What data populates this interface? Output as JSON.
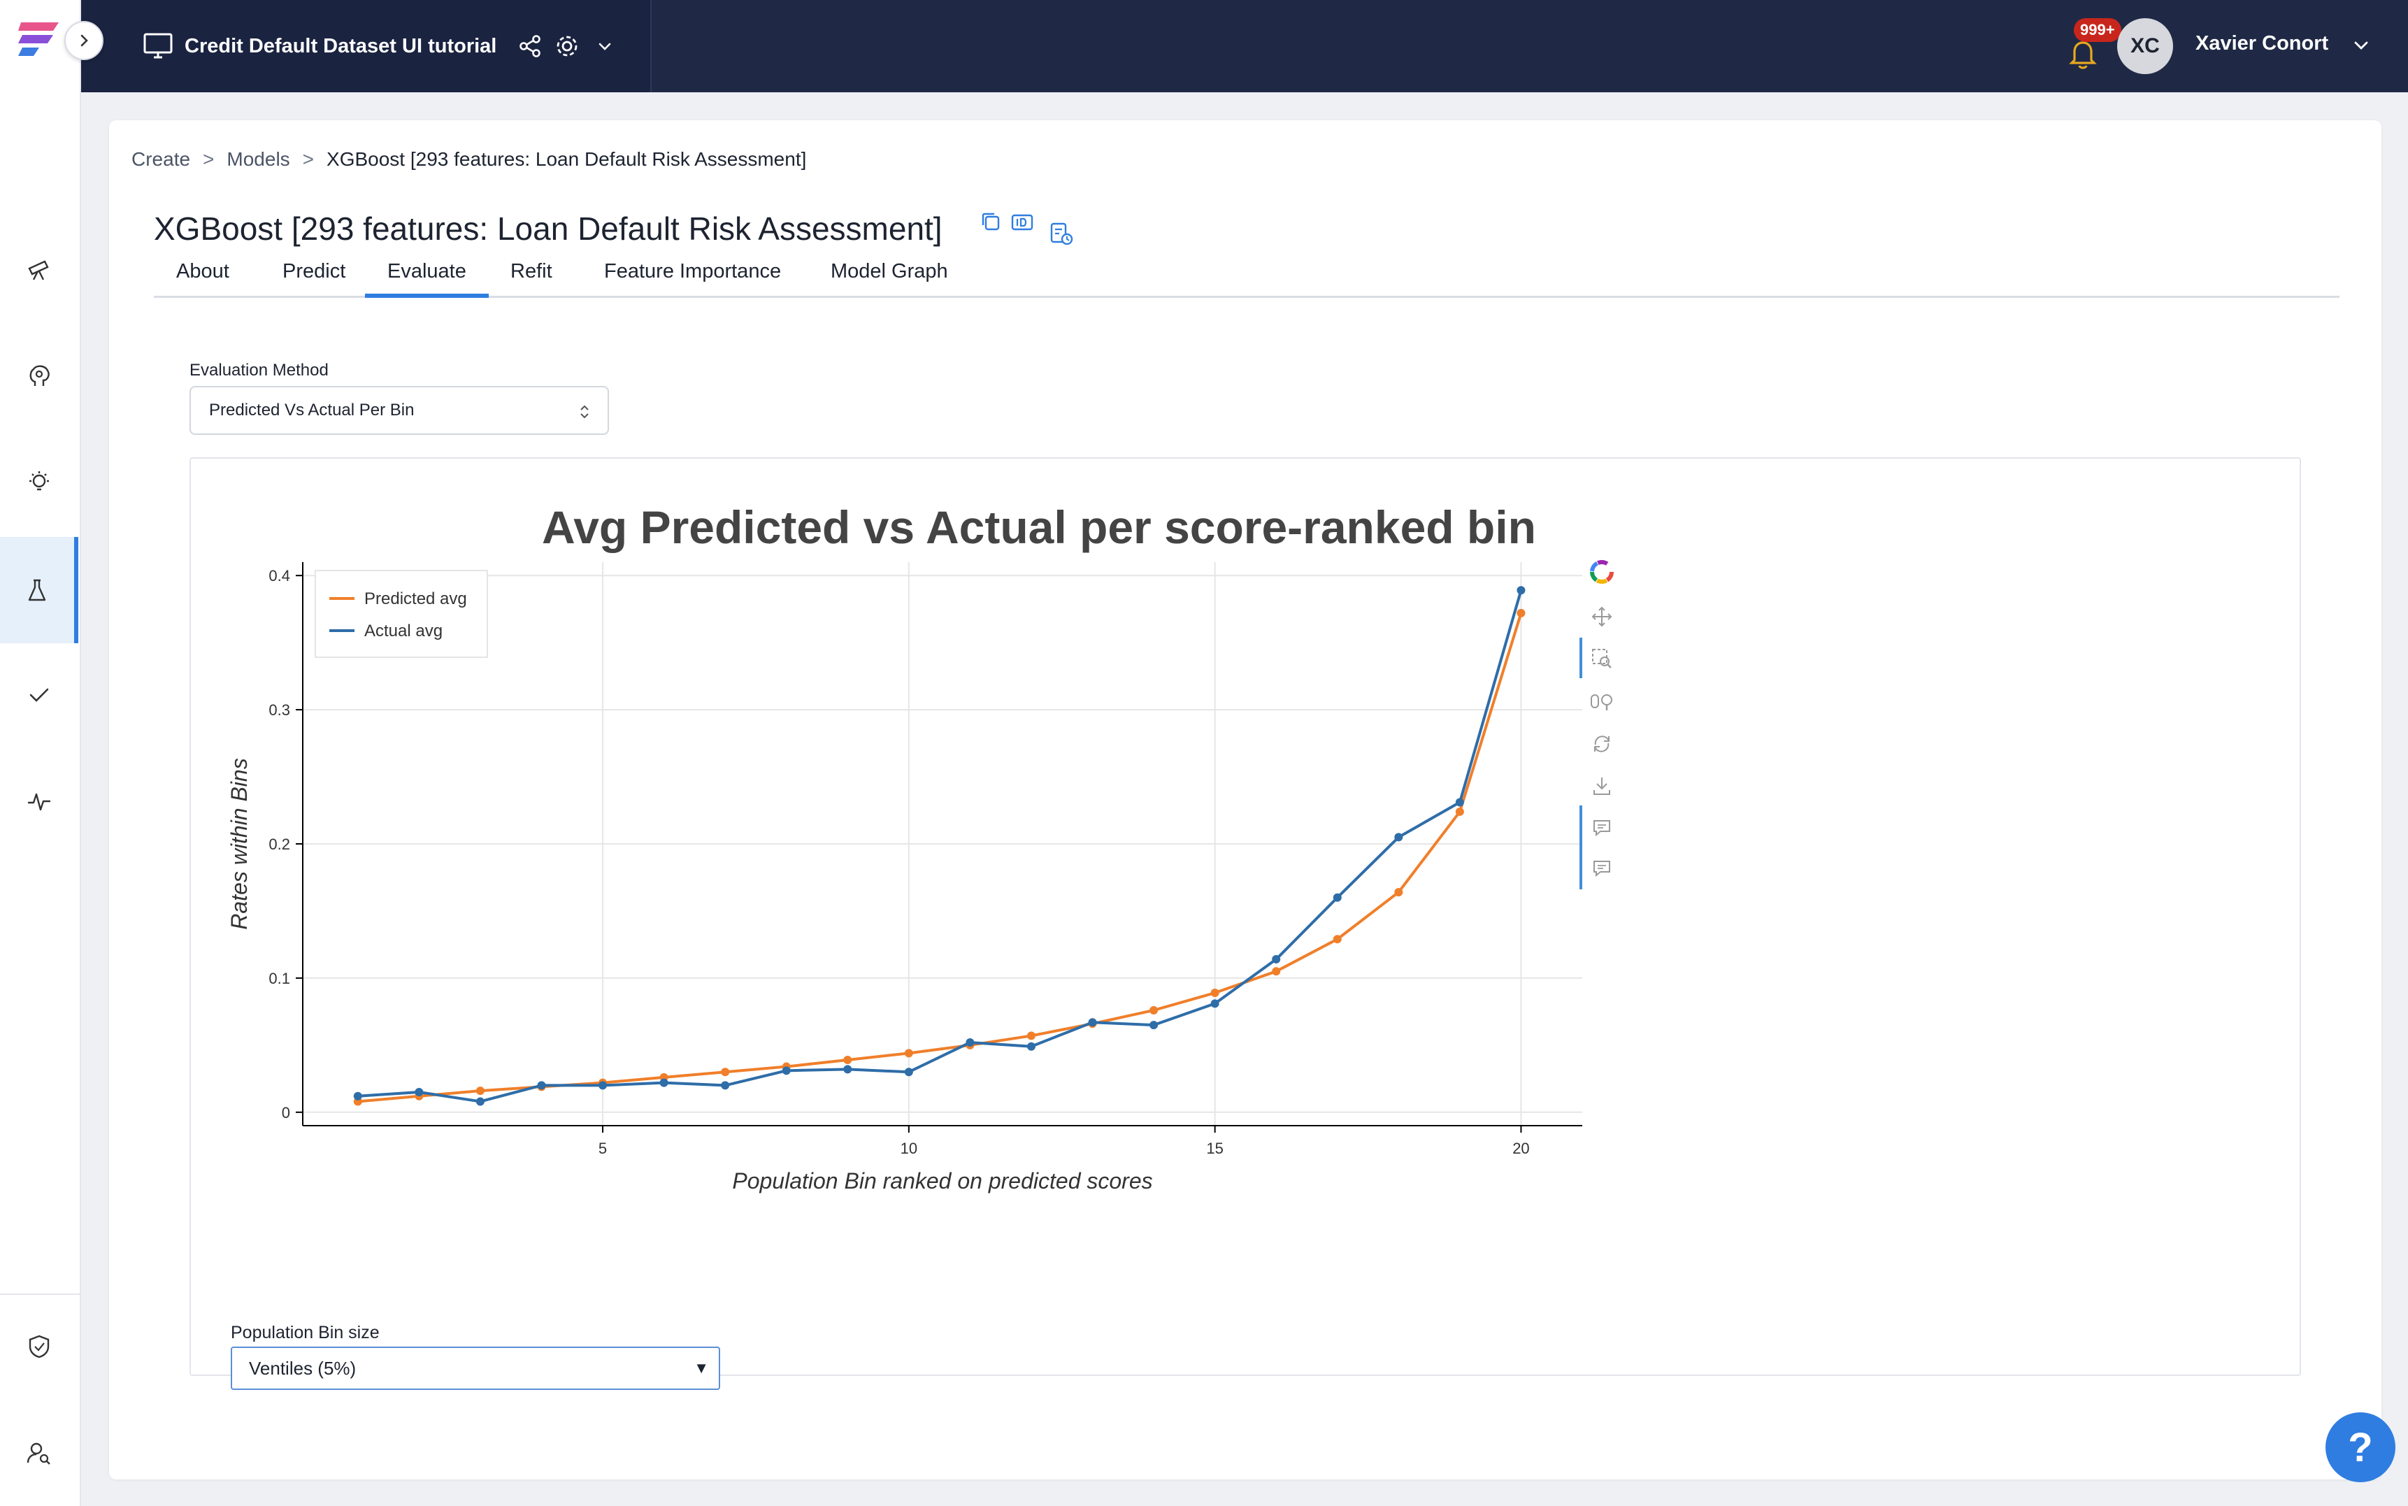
{
  "topbar": {
    "project_title": "Credit Default Dataset UI tutorial",
    "notification_count": "999+",
    "avatar_initials": "XC",
    "user_name": "Xavier Conort"
  },
  "breadcrumb": [
    "Create",
    "Models",
    "XGBoost [293 features: Loan Default Risk Assessment]"
  ],
  "breadcrumb_separator": ">",
  "page": {
    "title": "XGBoost [293 features: Loan Default Risk Assessment]"
  },
  "tabs": [
    {
      "label": "About",
      "active": false
    },
    {
      "label": "Predict",
      "active": false
    },
    {
      "label": "Evaluate",
      "active": true
    },
    {
      "label": "Refit",
      "active": false
    },
    {
      "label": "Feature Importance",
      "active": false
    },
    {
      "label": "Model Graph",
      "active": false
    }
  ],
  "evaluation": {
    "method_label": "Evaluation Method",
    "method_value": "Predicted Vs Actual Per Bin"
  },
  "population": {
    "label": "Population Bin size",
    "value": "Ventiles (5%)"
  },
  "help": {
    "label": "?"
  },
  "colors": {
    "accent": "#2f7de1",
    "predicted": "#f07f2a",
    "actual": "#2e6da8",
    "navbar": "#1f2945"
  },
  "chart_data": {
    "type": "line",
    "title": "Avg Predicted vs Actual per score-ranked bin",
    "xlabel": "Population Bin ranked on predicted scores",
    "ylabel": "Rates within Bins",
    "x": [
      1,
      2,
      3,
      4,
      5,
      6,
      7,
      8,
      9,
      10,
      11,
      12,
      13,
      14,
      15,
      16,
      17,
      18,
      19,
      20
    ],
    "xlim": [
      0.1,
      21
    ],
    "ylim": [
      -0.01,
      0.41
    ],
    "x_ticks": [
      5,
      10,
      15,
      20
    ],
    "y_ticks": [
      0,
      0.1,
      0.2,
      0.3,
      0.4
    ],
    "y_tick_labels": [
      "0",
      "0.1",
      "0.2",
      "0.3",
      "0.4"
    ],
    "grid": true,
    "legend_position": "top-left",
    "series": [
      {
        "name": "Predicted avg",
        "color": "#f07f2a",
        "values": [
          0.008,
          0.012,
          0.016,
          0.019,
          0.022,
          0.026,
          0.03,
          0.034,
          0.039,
          0.044,
          0.05,
          0.057,
          0.066,
          0.076,
          0.089,
          0.105,
          0.129,
          0.164,
          0.224,
          0.372
        ]
      },
      {
        "name": "Actual avg",
        "color": "#2e6da8",
        "values": [
          0.012,
          0.015,
          0.008,
          0.02,
          0.02,
          0.022,
          0.02,
          0.031,
          0.032,
          0.03,
          0.052,
          0.049,
          0.067,
          0.065,
          0.081,
          0.114,
          0.16,
          0.205,
          0.231,
          0.389
        ]
      }
    ]
  }
}
